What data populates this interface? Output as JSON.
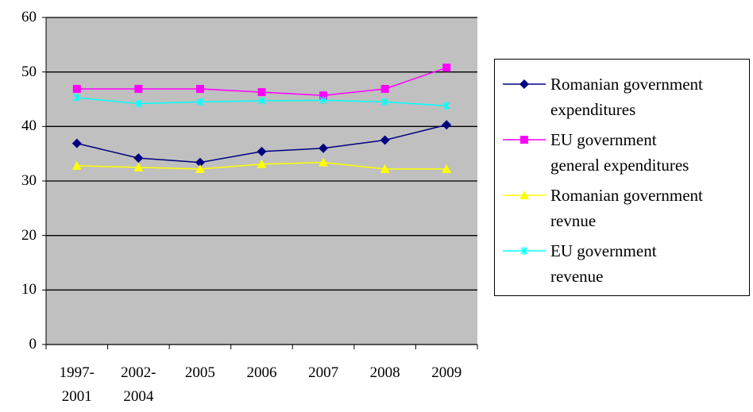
{
  "chart_data": {
    "type": "line",
    "categories": [
      "1997-2001",
      "2002-2004",
      "2005",
      "2006",
      "2007",
      "2008",
      "2009"
    ],
    "series": [
      {
        "name": "Romanian government expenditures",
        "color": "#000080",
        "marker": "diamond",
        "values": [
          36.9,
          34.2,
          33.4,
          35.4,
          36.0,
          37.5,
          40.3
        ]
      },
      {
        "name": "EU government general expenditures",
        "color": "#ff00ff",
        "marker": "square",
        "values": [
          46.9,
          46.9,
          46.9,
          46.3,
          45.7,
          46.9,
          50.8
        ]
      },
      {
        "name": "Romanian government revnue",
        "color": "#ffff00",
        "marker": "triangle",
        "values": [
          32.8,
          32.5,
          32.2,
          33.1,
          33.4,
          32.2,
          32.2
        ]
      },
      {
        "name": "EU government revenue",
        "color": "#00ffff",
        "marker": "x",
        "values": [
          45.3,
          44.2,
          44.5,
          44.7,
          44.8,
          44.5,
          43.8
        ]
      }
    ],
    "ylim": [
      0,
      60
    ],
    "yticks": [
      0,
      10,
      20,
      30,
      40,
      50,
      60
    ],
    "grid": true,
    "plot_background": "#c0c0c0",
    "legend": "right"
  }
}
